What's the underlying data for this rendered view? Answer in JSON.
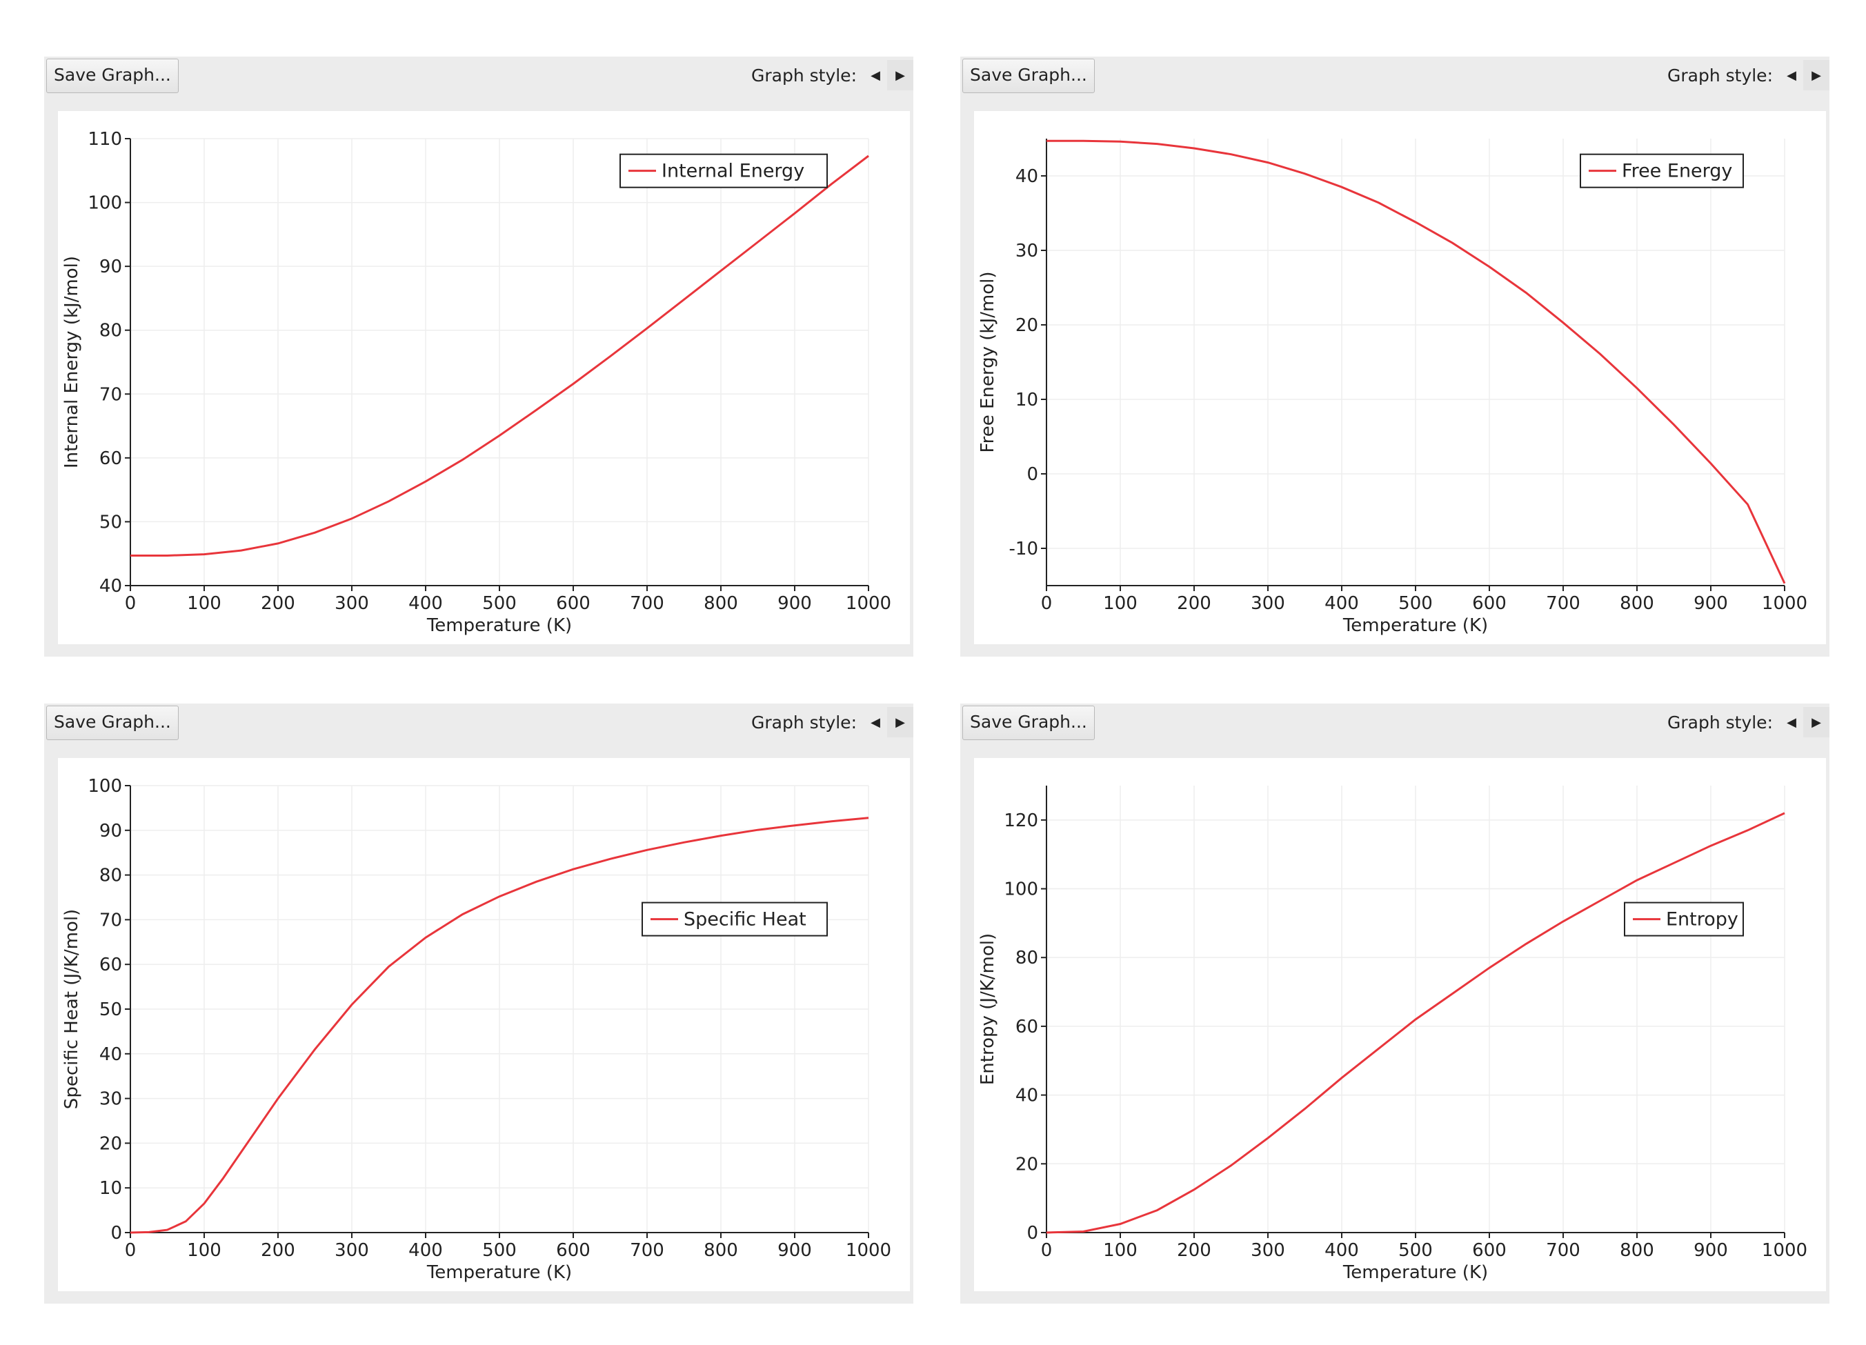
{
  "panels": [
    {
      "save_label": "Save Graph...",
      "style_label": "Graph style:",
      "left_arrow": "◀",
      "right_arrow": "▶"
    },
    {
      "save_label": "Save Graph...",
      "style_label": "Graph style:",
      "left_arrow": "◀",
      "right_arrow": "▶"
    },
    {
      "save_label": "Save Graph...",
      "style_label": "Graph style:",
      "left_arrow": "◀",
      "right_arrow": "▶"
    },
    {
      "save_label": "Save Graph...",
      "style_label": "Graph style:",
      "left_arrow": "◀",
      "right_arrow": "▶"
    }
  ],
  "colors": {
    "series": "#e8353b",
    "grid": "#eeeeee",
    "axis": "#222222"
  },
  "chart_data": [
    {
      "type": "line",
      "xlabel": "Temperature (K)",
      "ylabel": "Internal Energy (kJ/mol)",
      "xlim": [
        0,
        1000
      ],
      "ylim": [
        40,
        110
      ],
      "xticks": [
        0,
        100,
        200,
        300,
        400,
        500,
        600,
        700,
        800,
        900,
        1000
      ],
      "yticks": [
        40,
        50,
        60,
        70,
        80,
        90,
        100,
        110
      ],
      "legend_position": "top-right",
      "series": [
        {
          "name": "Internal Energy",
          "x": [
            0,
            50,
            100,
            150,
            200,
            250,
            300,
            350,
            400,
            450,
            500,
            550,
            600,
            650,
            700,
            750,
            800,
            850,
            900,
            950,
            1000
          ],
          "y": [
            44.7,
            44.7,
            44.9,
            45.5,
            46.6,
            48.3,
            50.5,
            53.2,
            56.3,
            59.7,
            63.5,
            67.5,
            71.6,
            75.9,
            80.3,
            84.8,
            89.3,
            93.8,
            98.3,
            102.9,
            107.3
          ]
        }
      ]
    },
    {
      "type": "line",
      "xlabel": "Temperature (K)",
      "ylabel": "Free Energy (kJ/mol)",
      "xlim": [
        0,
        1000
      ],
      "ylim": [
        -15,
        45
      ],
      "xticks": [
        0,
        100,
        200,
        300,
        400,
        500,
        600,
        700,
        800,
        900,
        1000
      ],
      "yticks": [
        -10,
        0,
        10,
        20,
        30,
        40
      ],
      "legend_position": "top-right",
      "series": [
        {
          "name": "Free Energy",
          "x": [
            0,
            50,
            100,
            150,
            200,
            250,
            300,
            350,
            400,
            450,
            500,
            550,
            600,
            650,
            700,
            750,
            800,
            850,
            900,
            950,
            1000
          ],
          "y": [
            44.7,
            44.7,
            44.6,
            44.3,
            43.7,
            42.9,
            41.8,
            40.3,
            38.5,
            36.4,
            33.8,
            31.0,
            27.8,
            24.3,
            20.3,
            16.1,
            11.5,
            6.6,
            1.4,
            -4.1,
            -14.7
          ]
        }
      ]
    },
    {
      "type": "line",
      "xlabel": "Temperature (K)",
      "ylabel": "Specific Heat (J/K/mol)",
      "xlim": [
        0,
        1000
      ],
      "ylim": [
        0,
        100
      ],
      "xticks": [
        0,
        100,
        200,
        300,
        400,
        500,
        600,
        700,
        800,
        900,
        1000
      ],
      "yticks": [
        0,
        10,
        20,
        30,
        40,
        50,
        60,
        70,
        80,
        90,
        100
      ],
      "legend_position": "right",
      "series": [
        {
          "name": "Specific Heat",
          "x": [
            0,
            25,
            50,
            75,
            100,
            125,
            150,
            175,
            200,
            250,
            300,
            350,
            400,
            450,
            500,
            550,
            600,
            650,
            700,
            750,
            800,
            850,
            900,
            950,
            1000
          ],
          "y": [
            0,
            0.1,
            0.6,
            2.5,
            6.5,
            12.0,
            18.0,
            24.0,
            30.0,
            41.0,
            51.0,
            59.5,
            66.0,
            71.2,
            75.2,
            78.5,
            81.3,
            83.6,
            85.6,
            87.3,
            88.8,
            90.1,
            91.1,
            92.0,
            92.8
          ]
        }
      ]
    },
    {
      "type": "line",
      "xlabel": "Temperature (K)",
      "ylabel": "Entropy (J/K/mol)",
      "xlim": [
        0,
        1000
      ],
      "ylim": [
        0,
        130
      ],
      "xticks": [
        0,
        100,
        200,
        300,
        400,
        500,
        600,
        700,
        800,
        900,
        1000
      ],
      "yticks": [
        0,
        20,
        40,
        60,
        80,
        100,
        120
      ],
      "legend_position": "right",
      "series": [
        {
          "name": "Entropy",
          "x": [
            0,
            50,
            100,
            150,
            200,
            250,
            300,
            350,
            400,
            450,
            500,
            550,
            600,
            650,
            700,
            750,
            800,
            850,
            900,
            950,
            1000
          ],
          "y": [
            0,
            0.3,
            2.5,
            6.5,
            12.5,
            19.5,
            27.5,
            36.0,
            45.0,
            53.5,
            62.0,
            69.5,
            77.0,
            84.0,
            90.5,
            96.5,
            102.5,
            107.5,
            112.5,
            117.0,
            122.0
          ]
        }
      ]
    }
  ]
}
